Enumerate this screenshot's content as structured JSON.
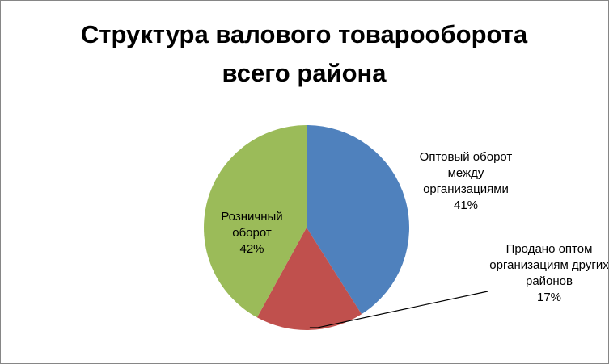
{
  "chart_data": {
    "type": "pie",
    "title": "Структура валового товарооборота всего района",
    "categories": [
      "Оптовый оборот между организациями",
      "Продано оптом организациям других районов",
      "Розничный оборот"
    ],
    "values": [
      41,
      17,
      42
    ],
    "value_labels": [
      "41%",
      "17%",
      "42%"
    ],
    "colors": [
      "#4f81bd",
      "#c0504d",
      "#9bbb59"
    ]
  }
}
